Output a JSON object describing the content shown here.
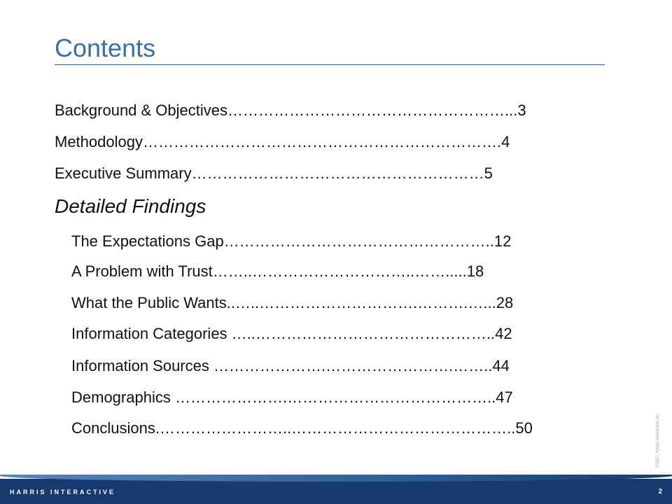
{
  "title": "Contents",
  "toc": [
    {
      "text": "Background & Objectives………………………………………………...3"
    },
    {
      "text": "Methodology…………………………………………………………….4"
    },
    {
      "text": "Executive Summary…………………………………………………5"
    }
  ],
  "section_heading": "Detailed Findings",
  "findings": [
    {
      "text": "The Expectations Gap……………………………………………..12"
    },
    {
      "text": "A Problem with Trust……..…………………………..…….....18"
    },
    {
      "text": "What the Public Wants..…..………………………….……….…...28"
    },
    {
      "text": "Information Categories …..………………………………………..42"
    },
    {
      "text": "Information Sources ………………….…………………….……..44"
    },
    {
      "text": "Demographics ………………….…………………………………..47"
    },
    {
      "text": "Conclusions.……………………..……………………………………..50"
    }
  ],
  "footer": {
    "company": "HARRIS INTERACTIVE",
    "page_number": "2",
    "copyright": "©2007, Harris Interactive Inc."
  }
}
